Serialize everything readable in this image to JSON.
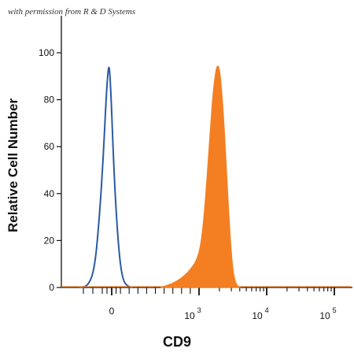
{
  "watermark": "with permission from R & D Systems",
  "chart_data": {
    "type": "area",
    "title": "",
    "xlabel": "CD9",
    "ylabel": "Relative Cell Number",
    "x_scale": "biexponential",
    "ylim": [
      0,
      100
    ],
    "y_ticks": [
      0,
      20,
      40,
      60,
      80,
      100
    ],
    "x_ticks": [
      {
        "label": "0",
        "value": 0
      },
      {
        "label": "10",
        "exp": "3",
        "value": 1000
      },
      {
        "label": "10",
        "exp": "4",
        "value": 10000
      },
      {
        "label": "10",
        "exp": "5",
        "value": 100000
      }
    ],
    "series": [
      {
        "style": "outline",
        "color": "#2b5aa3",
        "points": [
          [
            -350,
            0
          ],
          [
            -250,
            0.5
          ],
          [
            -180,
            8
          ],
          [
            -130,
            30
          ],
          [
            -90,
            55
          ],
          [
            -60,
            80
          ],
          [
            -40,
            92
          ],
          [
            -25,
            95
          ],
          [
            -5,
            80
          ],
          [
            20,
            55
          ],
          [
            50,
            32
          ],
          [
            90,
            12
          ],
          [
            130,
            3
          ],
          [
            180,
            0.5
          ],
          [
            250,
            0
          ]
        ]
      },
      {
        "style": "filled",
        "color": "#f47f22",
        "points": [
          [
            560,
            0
          ],
          [
            720,
            2
          ],
          [
            870,
            6
          ],
          [
            1000,
            13
          ],
          [
            1170,
            28
          ],
          [
            1320,
            48
          ],
          [
            1470,
            68
          ],
          [
            1620,
            84
          ],
          [
            1780,
            93
          ],
          [
            1900,
            95
          ],
          [
            2050,
            92
          ],
          [
            2250,
            78
          ],
          [
            2500,
            55
          ],
          [
            2750,
            32
          ],
          [
            3000,
            15
          ],
          [
            3250,
            5
          ],
          [
            3600,
            1
          ],
          [
            4000,
            0
          ]
        ]
      }
    ]
  }
}
